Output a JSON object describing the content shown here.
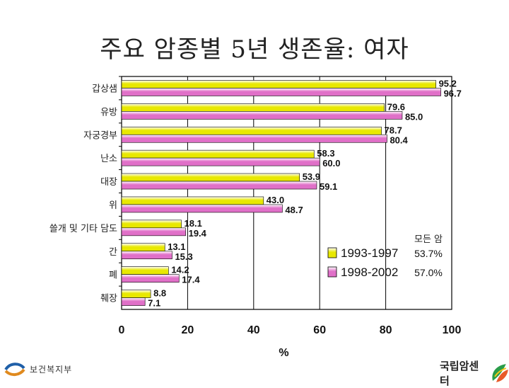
{
  "chart_data": {
    "type": "bar",
    "orientation": "horizontal",
    "title": "주요 암종별 5년 생존율: 여자",
    "xlabel": "%",
    "ylabel": "",
    "xlim": [
      0,
      100
    ],
    "xticks": [
      "0",
      "20",
      "40",
      "60",
      "80",
      "100"
    ],
    "grid": true,
    "legend_position": "bottom-right",
    "categories": [
      "갑상샘",
      "유방",
      "자궁경부",
      "난소",
      "대장",
      "위",
      "쓸개 및 기타 담도",
      "간",
      "폐",
      "췌장"
    ],
    "series": [
      {
        "name": "1993-1997",
        "color": "#e8e800",
        "values": [
          95.2,
          79.6,
          78.7,
          58.3,
          53.9,
          43.0,
          18.1,
          13.1,
          14.2,
          8.8
        ],
        "labels": [
          "95.2",
          "79.6",
          "78.7",
          "58.3",
          "53.9",
          "43.0",
          "18.1",
          "13.1",
          "14.2",
          "8.8"
        ]
      },
      {
        "name": "1998-2002",
        "color": "#e070c8",
        "values": [
          96.7,
          85.0,
          80.4,
          60.0,
          59.1,
          48.7,
          19.4,
          15.3,
          17.4,
          7.1
        ],
        "labels": [
          "96.7",
          "85.0",
          "80.4",
          "60.0",
          "59.1",
          "48.7",
          "19.4",
          "15.3",
          "17.4",
          "7.1"
        ]
      }
    ],
    "annotation": {
      "title": "모든 암",
      "values": [
        "53.7%",
        "57.0%"
      ]
    }
  },
  "footer": {
    "left_logo_text": "보건복지부",
    "right_logo_text": "국립암센터"
  }
}
